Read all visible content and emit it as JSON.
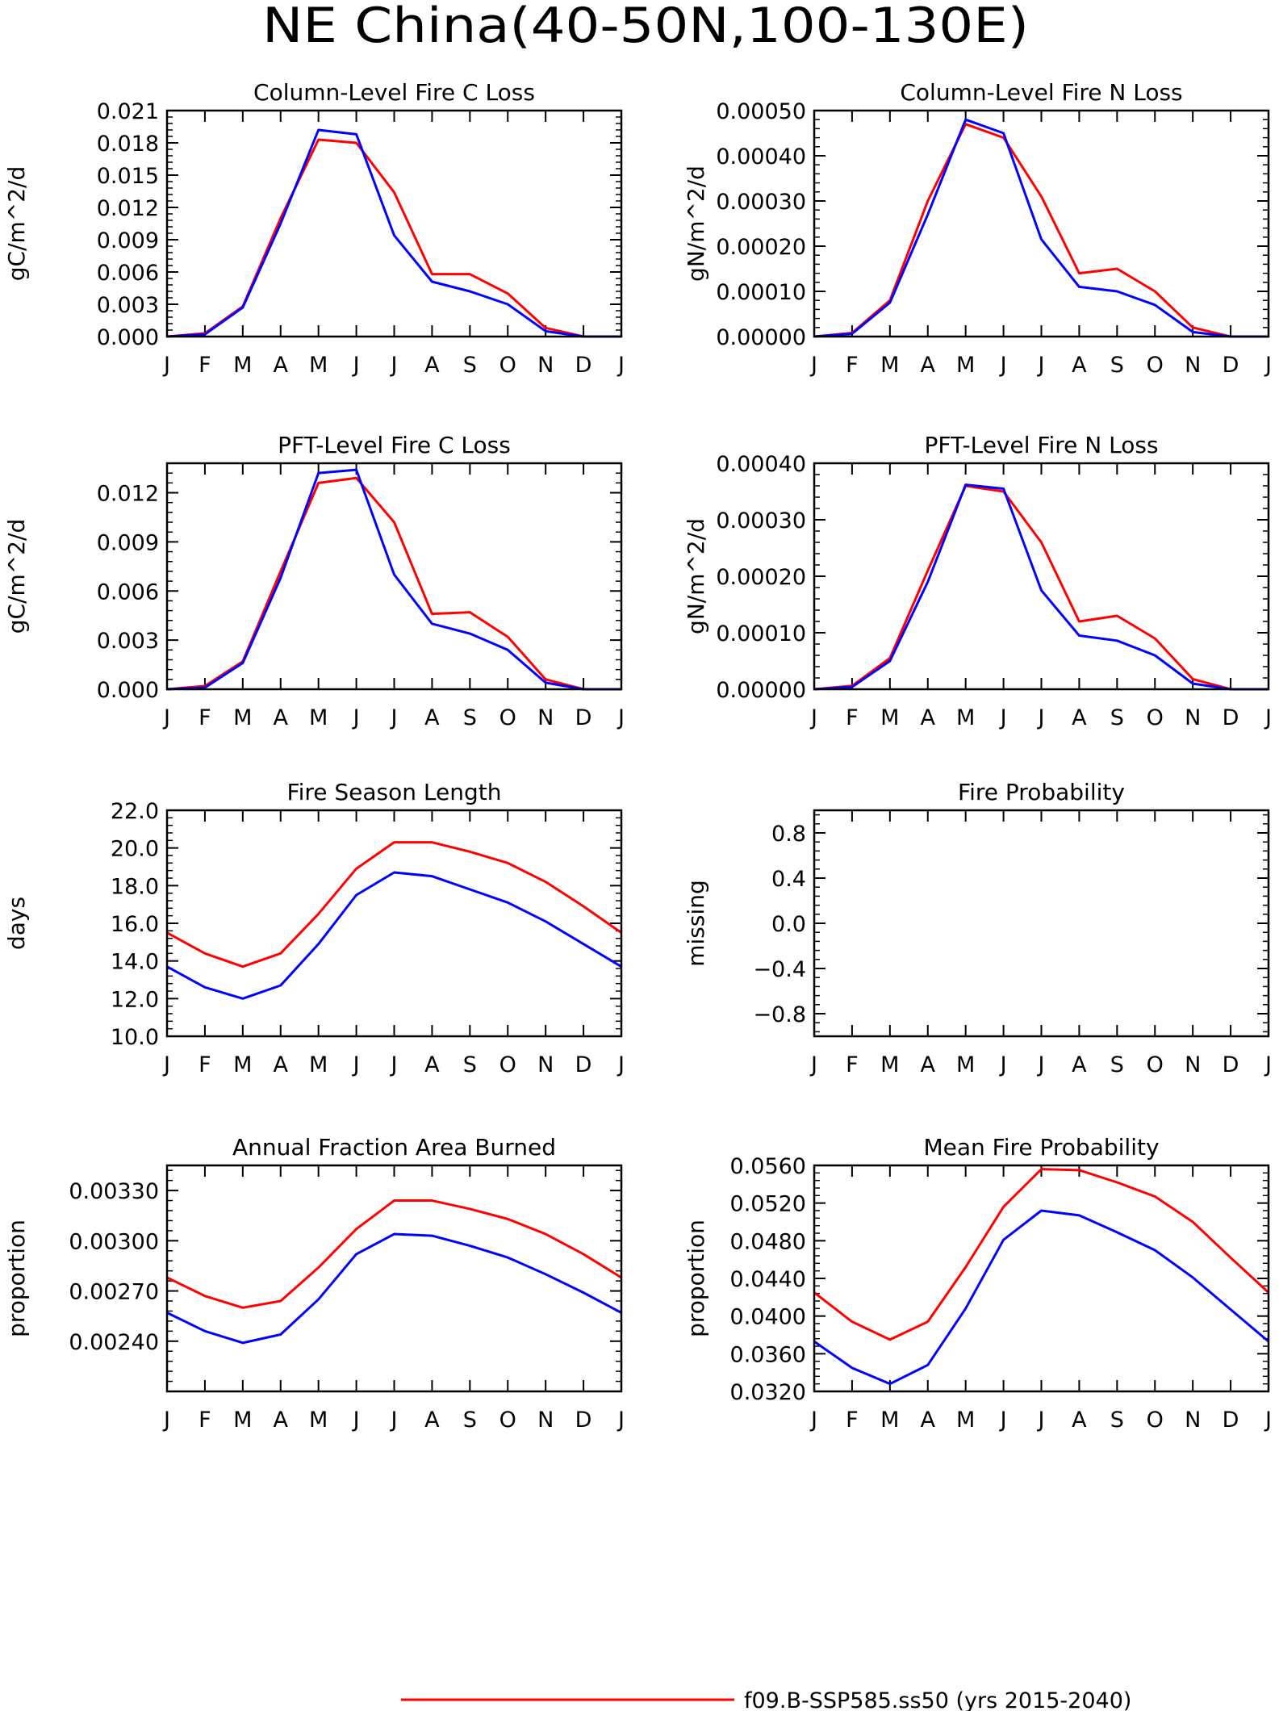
{
  "page_title": "NE China(40-50N,100-130E)",
  "month_ticks": [
    "J",
    "F",
    "M",
    "A",
    "M",
    "J",
    "J",
    "A",
    "S",
    "O",
    "N",
    "D",
    "J"
  ],
  "legend": [
    {
      "label": "f09.B-SSP585.ss50 (yrs 2015-2040)",
      "color": "#ff0000"
    }
  ],
  "series_colors": [
    "#ff0000",
    "#0000ff"
  ],
  "chart_data": [
    {
      "type": "line",
      "title": "Column-Level Fire C Loss",
      "ylabel": "gC/m^2/d",
      "ylim": [
        0,
        0.021
      ],
      "yticks": [
        0,
        0.003,
        0.006,
        0.009,
        0.012,
        0.015,
        0.018,
        0.021
      ],
      "yticklabels": [
        "0.000",
        "0.003",
        "0.006",
        "0.009",
        "0.012",
        "0.015",
        "0.018",
        "0.021"
      ],
      "x": [
        0,
        1,
        2,
        3,
        4,
        5,
        6,
        7,
        8,
        9,
        10,
        11,
        12
      ],
      "series": [
        {
          "color": "#ff0000",
          "values": [
            0.0,
            0.0003,
            0.0028,
            0.011,
            0.0183,
            0.018,
            0.0134,
            0.0058,
            0.0058,
            0.004,
            0.0008,
            0.0,
            0.0
          ]
        },
        {
          "color": "#0000ff",
          "values": [
            0.0,
            0.0002,
            0.0027,
            0.0105,
            0.0192,
            0.0188,
            0.0094,
            0.0051,
            0.0042,
            0.003,
            0.0005,
            0.0,
            0.0
          ]
        }
      ]
    },
    {
      "type": "line",
      "title": "Column-Level Fire N Loss",
      "ylabel": "gN/m^2/d",
      "ylim": [
        0,
        0.0005
      ],
      "yticks": [
        0,
        0.0001,
        0.0002,
        0.0003,
        0.0004,
        0.0005
      ],
      "yticklabels": [
        "0.00000",
        "0.00010",
        "0.00020",
        "0.00030",
        "0.00040",
        "0.00050"
      ],
      "x": [
        0,
        1,
        2,
        3,
        4,
        5,
        6,
        7,
        8,
        9,
        10,
        11,
        12
      ],
      "series": [
        {
          "color": "#ff0000",
          "values": [
            0.0,
            8e-06,
            8e-05,
            0.0003,
            0.00047,
            0.00044,
            0.00031,
            0.00014,
            0.00015,
            0.0001,
            2e-05,
            0.0,
            0.0
          ]
        },
        {
          "color": "#0000ff",
          "values": [
            0.0,
            6e-06,
            7.5e-05,
            0.00027,
            0.00048,
            0.00045,
            0.000215,
            0.00011,
            0.0001,
            7e-05,
            1e-05,
            0.0,
            0.0
          ]
        }
      ]
    },
    {
      "type": "line",
      "title": "PFT-Level Fire C Loss",
      "ylabel": "gC/m^2/d",
      "ylim": [
        0,
        0.0138
      ],
      "yticks": [
        0,
        0.003,
        0.006,
        0.009,
        0.012
      ],
      "yticklabels": [
        "0.000",
        "0.003",
        "0.006",
        "0.009",
        "0.012"
      ],
      "x": [
        0,
        1,
        2,
        3,
        4,
        5,
        6,
        7,
        8,
        9,
        10,
        11,
        12
      ],
      "series": [
        {
          "color": "#ff0000",
          "values": [
            0.0,
            0.0002,
            0.0017,
            0.0072,
            0.0126,
            0.0129,
            0.0102,
            0.0046,
            0.0047,
            0.0032,
            0.0006,
            0.0,
            0.0
          ]
        },
        {
          "color": "#0000ff",
          "values": [
            0.0,
            0.0001,
            0.0016,
            0.0068,
            0.0132,
            0.0134,
            0.007,
            0.004,
            0.0034,
            0.0024,
            0.0004,
            0.0,
            0.0
          ]
        }
      ]
    },
    {
      "type": "line",
      "title": "PFT-Level Fire N Loss",
      "ylabel": "gN/m^2/d",
      "ylim": [
        0,
        0.0004
      ],
      "yticks": [
        0,
        0.0001,
        0.0002,
        0.0003,
        0.0004
      ],
      "yticklabels": [
        "0.00000",
        "0.00010",
        "0.00020",
        "0.00030",
        "0.00040"
      ],
      "x": [
        0,
        1,
        2,
        3,
        4,
        5,
        6,
        7,
        8,
        9,
        10,
        11,
        12
      ],
      "series": [
        {
          "color": "#ff0000",
          "values": [
            0.0,
            6e-06,
            5.5e-05,
            0.00021,
            0.00036,
            0.00035,
            0.00026,
            0.00012,
            0.00013,
            9e-05,
            1.8e-05,
            0.0,
            0.0
          ]
        },
        {
          "color": "#0000ff",
          "values": [
            0.0,
            4e-06,
            5e-05,
            0.00019,
            0.000362,
            0.000355,
            0.000175,
            9.5e-05,
            8.6e-05,
            6e-05,
            1e-05,
            0.0,
            0.0
          ]
        }
      ]
    },
    {
      "type": "line",
      "title": "Fire Season Length",
      "ylabel": "days",
      "ylim": [
        10,
        22
      ],
      "yticks": [
        10,
        12,
        14,
        16,
        18,
        20,
        22
      ],
      "yticklabels": [
        "10.0",
        "12.0",
        "14.0",
        "16.0",
        "18.0",
        "20.0",
        "22.0"
      ],
      "x": [
        0,
        1,
        2,
        3,
        4,
        5,
        6,
        7,
        8,
        9,
        10,
        11,
        12
      ],
      "series": [
        {
          "color": "#ff0000",
          "values": [
            15.5,
            14.4,
            13.7,
            14.4,
            16.5,
            18.9,
            20.3,
            20.3,
            19.8,
            19.2,
            18.2,
            16.9,
            15.5
          ]
        },
        {
          "color": "#0000ff",
          "values": [
            13.7,
            12.6,
            12.0,
            12.7,
            14.9,
            17.5,
            18.7,
            18.5,
            17.8,
            17.1,
            16.1,
            14.9,
            13.7
          ]
        }
      ]
    },
    {
      "type": "line",
      "title": "Fire Probability",
      "ylabel": "missing",
      "ylim": [
        -1,
        1
      ],
      "yticks": [
        -0.8,
        -0.4,
        0.0,
        0.4,
        0.8
      ],
      "yticklabels": [
        "−0.8",
        "−0.4",
        "0.0",
        "0.4",
        "0.8"
      ],
      "x": [
        0,
        1,
        2,
        3,
        4,
        5,
        6,
        7,
        8,
        9,
        10,
        11,
        12
      ],
      "series": []
    },
    {
      "type": "line",
      "title": "Annual Fraction Area Burned",
      "ylabel": "proportion",
      "ylim": [
        0.0021,
        0.00345
      ],
      "yticks": [
        0.0024,
        0.0027,
        0.003,
        0.0033
      ],
      "yticklabels": [
        "0.00240",
        "0.00270",
        "0.00300",
        "0.00330"
      ],
      "x": [
        0,
        1,
        2,
        3,
        4,
        5,
        6,
        7,
        8,
        9,
        10,
        11,
        12
      ],
      "series": [
        {
          "color": "#ff0000",
          "values": [
            0.00278,
            0.00267,
            0.0026,
            0.00264,
            0.00284,
            0.00307,
            0.00324,
            0.00324,
            0.00319,
            0.00313,
            0.00304,
            0.00292,
            0.00278
          ]
        },
        {
          "color": "#0000ff",
          "values": [
            0.00257,
            0.00246,
            0.00239,
            0.00244,
            0.00265,
            0.00292,
            0.00304,
            0.00303,
            0.00297,
            0.0029,
            0.0028,
            0.00269,
            0.00257
          ]
        }
      ]
    },
    {
      "type": "line",
      "title": "Mean Fire Probability",
      "ylabel": "proportion",
      "ylim": [
        0.032,
        0.056
      ],
      "yticks": [
        0.032,
        0.036,
        0.04,
        0.044,
        0.048,
        0.052,
        0.056
      ],
      "yticklabels": [
        "0.0320",
        "0.0360",
        "0.0400",
        "0.0440",
        "0.0480",
        "0.0520",
        "0.0560"
      ],
      "x": [
        0,
        1,
        2,
        3,
        4,
        5,
        6,
        7,
        8,
        9,
        10,
        11,
        12
      ],
      "series": [
        {
          "color": "#ff0000",
          "values": [
            0.0425,
            0.0394,
            0.0375,
            0.0394,
            0.0452,
            0.0516,
            0.0556,
            0.0555,
            0.0542,
            0.0527,
            0.05,
            0.0462,
            0.0425
          ]
        },
        {
          "color": "#0000ff",
          "values": [
            0.0373,
            0.0345,
            0.0328,
            0.0348,
            0.0408,
            0.0481,
            0.0512,
            0.0507,
            0.0489,
            0.047,
            0.0441,
            0.0407,
            0.0373
          ]
        }
      ]
    }
  ]
}
